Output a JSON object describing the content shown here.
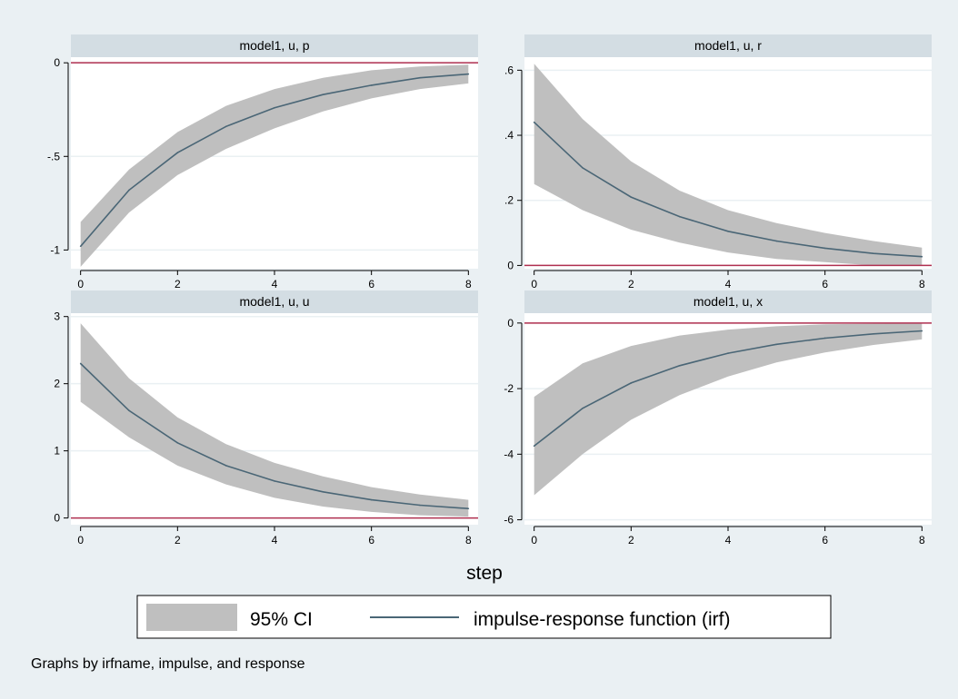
{
  "colors": {
    "background": "#eaf0f3",
    "panel_header": "#d3dde3",
    "plot_bg": "#ffffff",
    "grid": "#eaf0f3",
    "ci_band": "#bfbfbf",
    "irf_line": "#4a6676",
    "zero_line": "#b03050",
    "axis": "#000000"
  },
  "x_axis_title": "step",
  "note": "Graphs by irfname, impulse, and response",
  "legend": {
    "ci_label": "95% CI",
    "line_label": "impulse-response function (irf)"
  },
  "chart_data": [
    {
      "type": "area",
      "title": "model1, u, p",
      "x": [
        0,
        1,
        2,
        3,
        4,
        5,
        6,
        7,
        8
      ],
      "series": [
        {
          "name": "impulse-response function (irf)",
          "values": [
            -0.98,
            -0.68,
            -0.48,
            -0.34,
            -0.24,
            -0.17,
            -0.12,
            -0.08,
            -0.06
          ]
        },
        {
          "name": "95% CI lower",
          "values": [
            -1.09,
            -0.8,
            -0.6,
            -0.46,
            -0.35,
            -0.26,
            -0.19,
            -0.14,
            -0.11
          ]
        },
        {
          "name": "95% CI upper",
          "values": [
            -0.85,
            -0.57,
            -0.37,
            -0.23,
            -0.14,
            -0.08,
            -0.04,
            -0.02,
            -0.01
          ]
        }
      ],
      "xlabel": "step",
      "xticks": [
        0,
        2,
        4,
        6,
        8
      ],
      "yticks": [
        -1,
        -0.5,
        0
      ],
      "ytick_labels": [
        "-1",
        "-.5",
        "0"
      ],
      "ylim": [
        -1.1,
        0.03
      ],
      "xlim": [
        -0.2,
        8.2
      ],
      "zero_line": 0
    },
    {
      "type": "area",
      "title": "model1, u, r",
      "x": [
        0,
        1,
        2,
        3,
        4,
        5,
        6,
        7,
        8
      ],
      "series": [
        {
          "name": "impulse-response function (irf)",
          "values": [
            0.44,
            0.3,
            0.21,
            0.15,
            0.105,
            0.075,
            0.053,
            0.037,
            0.027
          ]
        },
        {
          "name": "95% CI lower",
          "values": [
            0.25,
            0.17,
            0.11,
            0.07,
            0.04,
            0.02,
            0.01,
            0.0,
            0.0
          ]
        },
        {
          "name": "95% CI upper",
          "values": [
            0.62,
            0.45,
            0.32,
            0.23,
            0.17,
            0.13,
            0.1,
            0.075,
            0.055
          ]
        }
      ],
      "xlabel": "step",
      "xticks": [
        0,
        2,
        4,
        6,
        8
      ],
      "yticks": [
        0,
        0.2,
        0.4,
        0.6
      ],
      "ytick_labels": [
        "0",
        ".2",
        ".4",
        ".6"
      ],
      "ylim": [
        -0.01,
        0.64
      ],
      "xlim": [
        -0.2,
        8.2
      ],
      "zero_line": 0
    },
    {
      "type": "area",
      "title": "model1, u, u",
      "x": [
        0,
        1,
        2,
        3,
        4,
        5,
        6,
        7,
        8
      ],
      "series": [
        {
          "name": "impulse-response function (irf)",
          "values": [
            2.3,
            1.6,
            1.12,
            0.78,
            0.55,
            0.39,
            0.27,
            0.19,
            0.14
          ]
        },
        {
          "name": "95% CI lower",
          "values": [
            1.73,
            1.2,
            0.78,
            0.5,
            0.3,
            0.17,
            0.09,
            0.04,
            0.02
          ]
        },
        {
          "name": "95% CI upper",
          "values": [
            2.9,
            2.08,
            1.5,
            1.1,
            0.82,
            0.62,
            0.46,
            0.35,
            0.27
          ]
        }
      ],
      "xlabel": "step",
      "xticks": [
        0,
        2,
        4,
        6,
        8
      ],
      "yticks": [
        0,
        1,
        2,
        3
      ],
      "ytick_labels": [
        "0",
        "1",
        "2",
        "3"
      ],
      "ylim": [
        -0.1,
        3.05
      ],
      "xlim": [
        -0.2,
        8.2
      ],
      "zero_line": 0
    },
    {
      "type": "area",
      "title": "model1, u, x",
      "x": [
        0,
        1,
        2,
        3,
        4,
        5,
        6,
        7,
        8
      ],
      "series": [
        {
          "name": "impulse-response function (irf)",
          "values": [
            -3.75,
            -2.6,
            -1.83,
            -1.3,
            -0.92,
            -0.65,
            -0.46,
            -0.33,
            -0.24
          ]
        },
        {
          "name": "95% CI lower",
          "values": [
            -5.25,
            -4.0,
            -2.95,
            -2.2,
            -1.63,
            -1.2,
            -0.9,
            -0.67,
            -0.5
          ]
        },
        {
          "name": "95% CI upper",
          "values": [
            -2.25,
            -1.23,
            -0.7,
            -0.38,
            -0.2,
            -0.1,
            -0.04,
            -0.02,
            -0.01
          ]
        }
      ],
      "xlabel": "step",
      "xticks": [
        0,
        2,
        4,
        6,
        8
      ],
      "yticks": [
        -6,
        -4,
        -2,
        0
      ],
      "ytick_labels": [
        "-6",
        "-4",
        "-2",
        "0"
      ],
      "ylim": [
        -6.15,
        0.3
      ],
      "xlim": [
        -0.2,
        8.2
      ],
      "zero_line": 0
    }
  ]
}
